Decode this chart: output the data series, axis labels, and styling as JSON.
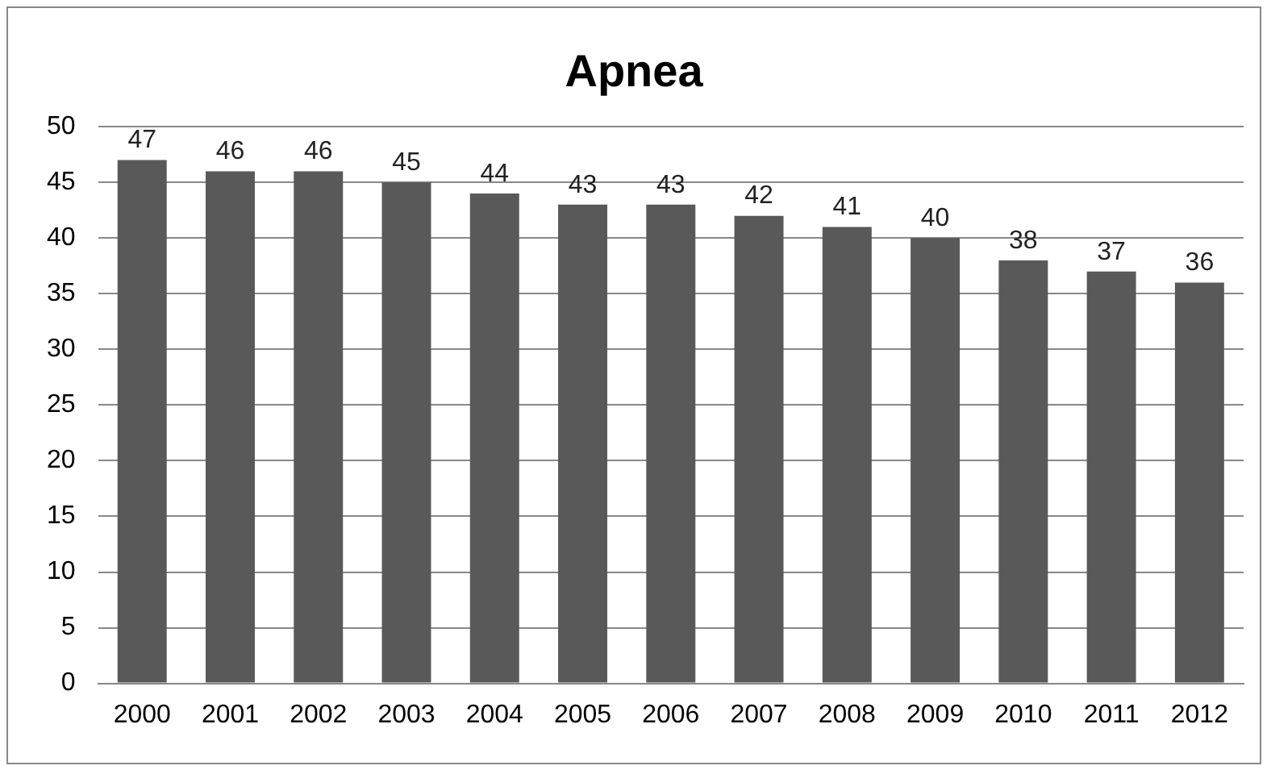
{
  "chart_data": {
    "type": "bar",
    "title": "Apnea",
    "categories": [
      "2000",
      "2001",
      "2002",
      "2003",
      "2004",
      "2005",
      "2006",
      "2007",
      "2008",
      "2009",
      "2010",
      "2011",
      "2012"
    ],
    "values": [
      47,
      46,
      46,
      45,
      44,
      43,
      43,
      42,
      41,
      40,
      38,
      37,
      36
    ],
    "color": "#595959",
    "ylim": [
      0,
      50
    ],
    "yticks": [
      0,
      5,
      10,
      15,
      20,
      25,
      30,
      35,
      40,
      45,
      50
    ],
    "grid": "y",
    "data_labels": true,
    "legend": false
  }
}
